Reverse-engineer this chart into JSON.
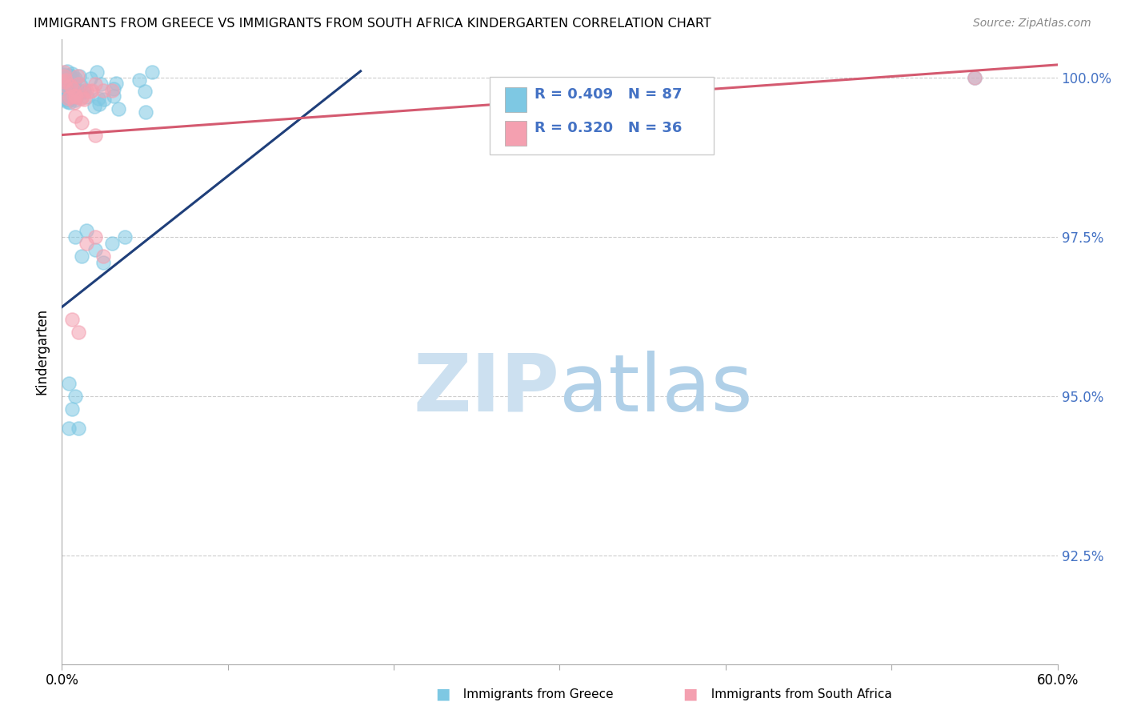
{
  "title": "IMMIGRANTS FROM GREECE VS IMMIGRANTS FROM SOUTH AFRICA KINDERGARTEN CORRELATION CHART",
  "source": "Source: ZipAtlas.com",
  "ylabel": "Kindergarten",
  "ytick_labels": [
    "92.5%",
    "95.0%",
    "97.5%",
    "100.0%"
  ],
  "ytick_values": [
    0.925,
    0.95,
    0.975,
    1.0
  ],
  "xlim": [
    0.0,
    0.6
  ],
  "ylim": [
    0.908,
    1.006
  ],
  "color_blue": "#7ec8e3",
  "color_pink": "#f4a0b0",
  "trendline_blue": "#1f3f7a",
  "trendline_pink": "#d45a70",
  "watermark_zip_color": "#cce0f0",
  "watermark_atlas_color": "#b0d0e8",
  "background_color": "#ffffff",
  "grid_color": "#cccccc",
  "right_axis_color": "#4472c4",
  "legend_R1": "R = 0.409",
  "legend_N1": "N = 87",
  "legend_R2": "R = 0.320",
  "legend_N2": "N = 36",
  "greece_trendline_x0": 0.0,
  "greece_trendline_y0": 0.964,
  "greece_trendline_x1": 0.18,
  "greece_trendline_y1": 1.001,
  "sa_trendline_x0": 0.0,
  "sa_trendline_y0": 0.991,
  "sa_trendline_x1": 0.6,
  "sa_trendline_y1": 1.002
}
